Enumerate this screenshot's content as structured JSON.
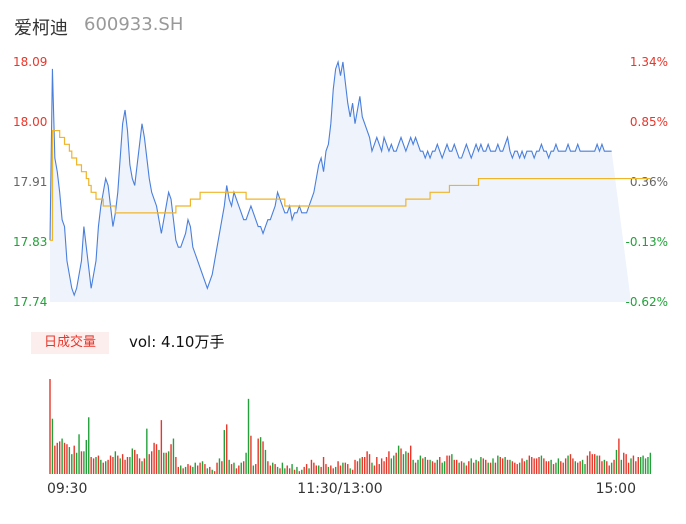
{
  "header": {
    "name": "爱柯迪",
    "code": "600933.SH"
  },
  "volume_panel": {
    "tag": "日成交量",
    "label": "vol: 4.10万手"
  },
  "colors": {
    "price_line": "#4a7fdc",
    "avg_line": "#f0b429",
    "up": "#e8362a",
    "down": "#22a13a",
    "flat": "#666666",
    "area": "#eef3fc"
  },
  "chart_data": {
    "type": "line",
    "x_ticks": [
      "09:30",
      "11:30/13:00",
      "15:00"
    ],
    "y_ticks": [
      {
        "price": "18.09",
        "pct": "1.34%",
        "tone": "up"
      },
      {
        "price": "18.00",
        "pct": "0.85%",
        "tone": "up"
      },
      {
        "price": "17.91",
        "pct": "0.36%",
        "tone": "flat"
      },
      {
        "price": "17.83",
        "pct": "-0.13%",
        "tone": "down"
      },
      {
        "price": "17.74",
        "pct": "-0.62%",
        "tone": "down"
      }
    ],
    "ylim": [
      17.74,
      18.09
    ],
    "prev_close": 17.85,
    "points": 241,
    "series": [
      {
        "name": "price",
        "values": [
          17.83,
          18.08,
          17.95,
          17.93,
          17.9,
          17.86,
          17.85,
          17.8,
          17.78,
          17.76,
          17.75,
          17.76,
          17.78,
          17.8,
          17.85,
          17.82,
          17.79,
          17.76,
          17.78,
          17.8,
          17.85,
          17.88,
          17.9,
          17.92,
          17.91,
          17.88,
          17.85,
          17.87,
          17.9,
          17.95,
          18.0,
          18.02,
          17.99,
          17.94,
          17.92,
          17.91,
          17.94,
          17.97,
          18.0,
          17.98,
          17.95,
          17.92,
          17.9,
          17.89,
          17.88,
          17.86,
          17.84,
          17.86,
          17.88,
          17.9,
          17.89,
          17.86,
          17.83,
          17.82,
          17.82,
          17.83,
          17.84,
          17.86,
          17.85,
          17.82,
          17.81,
          17.8,
          17.79,
          17.78,
          17.77,
          17.76,
          17.77,
          17.78,
          17.8,
          17.82,
          17.84,
          17.86,
          17.88,
          17.91,
          17.89,
          17.88,
          17.9,
          17.89,
          17.88,
          17.87,
          17.86,
          17.86,
          17.87,
          17.88,
          17.87,
          17.86,
          17.85,
          17.85,
          17.84,
          17.85,
          17.86,
          17.86,
          17.87,
          17.88,
          17.9,
          17.89,
          17.88,
          17.87,
          17.87,
          17.88,
          17.86,
          17.87,
          17.87,
          17.88,
          17.87,
          17.87,
          17.87,
          17.88,
          17.89,
          17.9,
          17.92,
          17.94,
          17.95,
          17.93,
          17.96,
          17.97,
          18.0,
          18.05,
          18.08,
          18.09,
          18.07,
          18.09,
          18.06,
          18.03,
          18.01,
          18.03,
          18.0,
          18.02,
          18.04,
          18.01,
          18.0,
          17.99,
          17.98,
          17.96,
          17.97,
          17.98,
          17.97,
          17.96,
          17.98,
          17.97,
          17.96,
          17.97,
          17.96,
          17.96,
          17.97,
          17.98,
          17.97,
          17.96,
          17.97,
          17.98,
          17.97,
          17.98,
          17.97,
          17.96,
          17.96,
          17.95,
          17.96,
          17.95,
          17.96,
          17.96,
          17.97,
          17.96,
          17.95,
          17.96,
          17.97,
          17.96,
          17.96,
          17.97,
          17.96,
          17.95,
          17.95,
          17.96,
          17.97,
          17.96,
          17.95,
          17.96,
          17.97,
          17.96,
          17.97,
          17.96,
          17.96,
          17.97,
          17.96,
          17.96,
          17.96,
          17.97,
          17.96,
          17.96,
          17.97,
          17.98,
          17.96,
          17.95,
          17.96,
          17.96,
          17.95,
          17.96,
          17.95,
          17.96,
          17.96,
          17.96,
          17.95,
          17.96,
          17.96,
          17.97,
          17.96,
          17.96,
          17.95,
          17.96,
          17.96,
          17.97,
          17.96,
          17.96,
          17.96,
          17.96,
          17.97,
          17.96,
          17.96,
          17.96,
          17.97,
          17.96,
          17.96,
          17.96,
          17.96,
          17.96,
          17.96,
          17.96,
          17.97,
          17.96,
          17.97,
          17.96,
          17.96,
          17.96,
          17.96
        ]
      },
      {
        "name": "avg",
        "values": [
          17.83,
          17.99,
          17.99,
          17.99,
          17.98,
          17.98,
          17.97,
          17.97,
          17.96,
          17.95,
          17.95,
          17.94,
          17.94,
          17.93,
          17.93,
          17.92,
          17.91,
          17.9,
          17.9,
          17.89,
          17.89,
          17.89,
          17.88,
          17.88,
          17.88,
          17.88,
          17.88,
          17.87,
          17.87,
          17.87,
          17.87,
          17.87,
          17.87,
          17.87,
          17.87,
          17.87,
          17.87,
          17.87,
          17.87,
          17.87,
          17.87,
          17.87,
          17.87,
          17.87,
          17.87,
          17.87,
          17.87,
          17.87,
          17.87,
          17.87,
          17.87,
          17.87,
          17.88,
          17.88,
          17.88,
          17.88,
          17.88,
          17.88,
          17.89,
          17.89,
          17.89,
          17.89,
          17.9,
          17.9,
          17.9,
          17.9,
          17.9,
          17.9,
          17.9,
          17.9,
          17.9,
          17.9,
          17.9,
          17.9,
          17.9,
          17.9,
          17.9,
          17.9,
          17.9,
          17.9,
          17.9,
          17.89,
          17.89,
          17.89,
          17.89,
          17.89,
          17.89,
          17.89,
          17.89,
          17.89,
          17.89,
          17.89,
          17.89,
          17.89,
          17.89,
          17.89,
          17.89,
          17.88,
          17.88,
          17.88,
          17.88,
          17.88,
          17.88,
          17.88,
          17.88,
          17.88,
          17.88,
          17.88,
          17.88,
          17.88,
          17.88,
          17.88,
          17.88,
          17.88,
          17.88,
          17.88,
          17.88,
          17.88,
          17.88,
          17.88,
          17.88,
          17.88,
          17.88,
          17.88,
          17.88,
          17.88,
          17.88,
          17.88,
          17.88,
          17.88,
          17.88,
          17.88,
          17.88,
          17.88,
          17.88,
          17.88,
          17.88,
          17.88,
          17.88,
          17.88,
          17.88,
          17.88,
          17.88,
          17.88,
          17.88,
          17.88,
          17.88,
          17.89,
          17.89,
          17.89,
          17.89,
          17.89,
          17.89,
          17.89,
          17.89,
          17.89,
          17.89,
          17.9,
          17.9,
          17.9,
          17.9,
          17.9,
          17.9,
          17.9,
          17.9,
          17.91,
          17.91,
          17.91,
          17.91,
          17.91,
          17.91,
          17.91,
          17.91,
          17.91,
          17.91,
          17.91,
          17.91,
          17.92,
          17.92,
          17.92,
          17.92,
          17.92,
          17.92,
          17.92,
          17.92,
          17.92,
          17.92,
          17.92,
          17.92,
          17.92,
          17.92,
          17.92,
          17.92,
          17.92,
          17.92,
          17.92,
          17.92,
          17.92,
          17.92,
          17.92,
          17.92,
          17.92,
          17.92,
          17.92,
          17.92,
          17.92,
          17.92,
          17.92,
          17.92,
          17.92,
          17.92,
          17.92,
          17.92,
          17.92,
          17.92,
          17.92,
          17.92,
          17.92,
          17.92,
          17.92,
          17.92,
          17.92,
          17.92,
          17.92,
          17.92,
          17.92,
          17.92,
          17.92,
          17.92,
          17.92,
          17.92,
          17.92,
          17.92,
          17.92,
          17.92,
          17.92,
          17.92,
          17.92,
          17.92,
          17.92,
          17.92,
          17.92,
          17.92,
          17.92,
          17.92,
          17.92,
          17.92,
          17.92,
          17.92
        ]
      }
    ],
    "volume": {
      "values": [
        67,
        39,
        20,
        22,
        23,
        25,
        22,
        21,
        19,
        14,
        20,
        15,
        28,
        16,
        16,
        24,
        40,
        12,
        11,
        12,
        13,
        10,
        8,
        9,
        10,
        13,
        12,
        16,
        13,
        11,
        14,
        10,
        12,
        12,
        18,
        17,
        14,
        11,
        9,
        11,
        32,
        14,
        16,
        22,
        21,
        17,
        38,
        15,
        15,
        16,
        21,
        25,
        12,
        5,
        6,
        4,
        5,
        7,
        6,
        5,
        8,
        6,
        8,
        9,
        7,
        4,
        5,
        3,
        2,
        8,
        11,
        9,
        31,
        35,
        10,
        7,
        8,
        4,
        6,
        8,
        9,
        15,
        53,
        27,
        6,
        7,
        25,
        26,
        23,
        17,
        9,
        6,
        8,
        7,
        5,
        4,
        8,
        4,
        6,
        4,
        7,
        3,
        5,
        2,
        3,
        5,
        7,
        4,
        10,
        8,
        6,
        6,
        5,
        12,
        7,
        5,
        6,
        4,
        5,
        9,
        6,
        8,
        8,
        7,
        4,
        3,
        10,
        9,
        11,
        12,
        12,
        16,
        14,
        8,
        6,
        12,
        7,
        11,
        9,
        12,
        16,
        11,
        13,
        15,
        20,
        18,
        14,
        16,
        15,
        20,
        10,
        8,
        10,
        13,
        11,
        12,
        10,
        10,
        9,
        8,
        10,
        12,
        8,
        9,
        13,
        13,
        14,
        10,
        10,
        8,
        9,
        8,
        6,
        9,
        11,
        8,
        10,
        9,
        12,
        11,
        10,
        8,
        8,
        11,
        8,
        13,
        12,
        11,
        12,
        10,
        10,
        9,
        8,
        7,
        8,
        11,
        9,
        10,
        13,
        12,
        11,
        11,
        12,
        13,
        11,
        9,
        9,
        10,
        7,
        8,
        11,
        9,
        8,
        11,
        13,
        14,
        11,
        9,
        8,
        9,
        10,
        7,
        13,
        16,
        14,
        14,
        13,
        13,
        9,
        10,
        9,
        6,
        8,
        10,
        17,
        25,
        10,
        15,
        14,
        8,
        11,
        13,
        9,
        12,
        12,
        13,
        11,
        12,
        15
      ],
      "up": [
        1,
        0,
        1,
        1,
        1,
        0,
        1,
        1,
        0,
        0,
        1,
        0,
        0,
        1,
        0,
        0,
        0,
        1,
        1,
        0,
        1,
        0,
        1,
        0,
        1,
        1,
        1,
        0,
        1,
        0,
        1,
        1,
        1,
        0,
        0,
        1,
        1,
        1,
        0,
        1,
        0,
        1,
        1,
        1,
        1,
        0,
        1,
        0,
        1,
        0,
        1,
        0,
        1,
        1,
        0,
        1,
        0,
        1,
        1,
        0,
        0,
        1,
        1,
        0,
        1,
        0,
        1,
        0,
        1,
        1,
        0,
        1,
        0,
        1,
        0,
        1,
        0,
        1,
        1,
        0,
        1,
        0,
        0,
        1,
        0,
        1,
        1,
        0,
        1,
        0,
        1,
        1,
        0,
        1,
        0,
        1,
        0,
        0,
        1,
        1,
        0,
        1,
        0,
        1,
        0,
        1,
        1,
        0,
        1,
        1,
        1,
        0,
        1,
        1,
        1,
        0,
        1,
        1,
        0,
        1,
        1,
        0,
        1,
        1,
        0,
        1,
        1,
        1,
        0,
        1,
        1,
        1,
        1,
        0,
        1,
        1,
        1,
        1,
        1,
        1,
        1,
        0,
        0,
        1,
        0,
        1,
        0,
        0,
        1,
        1,
        0,
        1,
        0,
        0,
        1,
        0,
        1,
        0,
        1,
        1,
        0,
        1,
        0,
        0,
        1,
        1,
        0,
        1,
        1,
        0,
        1,
        0,
        1,
        1,
        0,
        1,
        0,
        1,
        0,
        1,
        1,
        0,
        1,
        0,
        1,
        0,
        1,
        1,
        0,
        1,
        0,
        1,
        1,
        1,
        0,
        1,
        1,
        0,
        1,
        1,
        1,
        1,
        1,
        0,
        1,
        1,
        1,
        0,
        1,
        0,
        0,
        1,
        1,
        1,
        0,
        1,
        1,
        0,
        1,
        1,
        0,
        0,
        1,
        1,
        1,
        1,
        0,
        1,
        1,
        0,
        1,
        1,
        0,
        1,
        0,
        1,
        0,
        1,
        1,
        1,
        0,
        1,
        1,
        1,
        0
      ]
    }
  }
}
